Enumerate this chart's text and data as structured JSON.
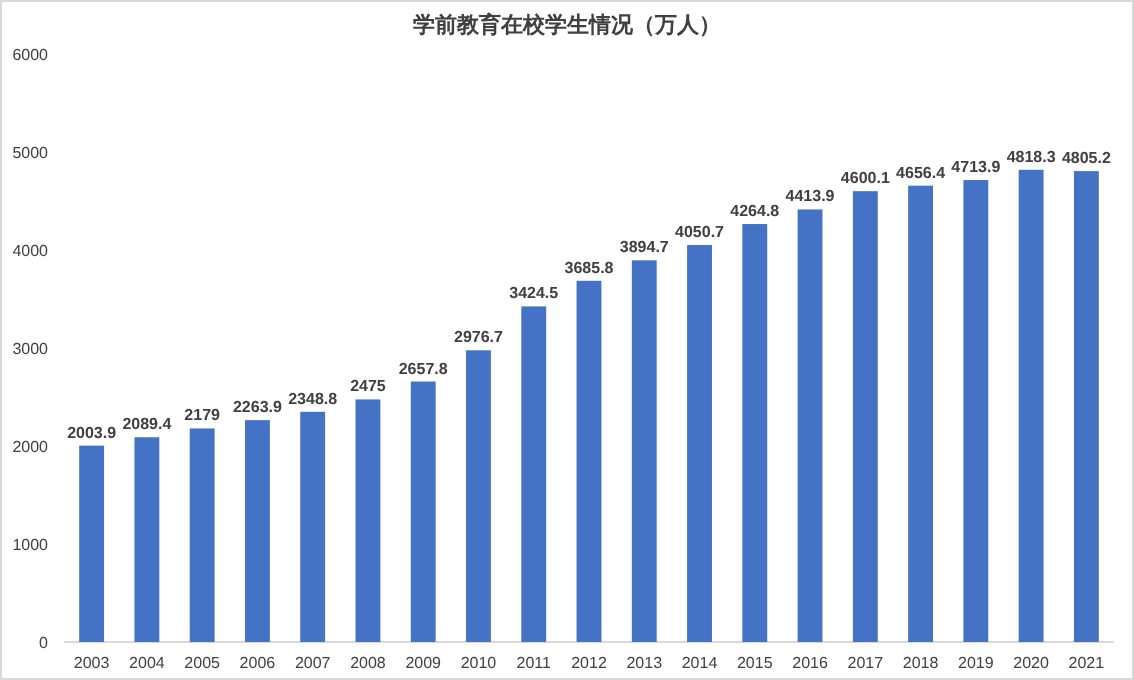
{
  "chart_data": {
    "type": "bar",
    "title": "学前教育在校学生情况（万人）",
    "categories": [
      "2003",
      "2004",
      "2005",
      "2006",
      "2007",
      "2008",
      "2009",
      "2010",
      "2011",
      "2012",
      "2013",
      "2014",
      "2015",
      "2016",
      "2017",
      "2018",
      "2019",
      "2020",
      "2021"
    ],
    "series": [
      {
        "color": "#4472c4",
        "values": [
          2003.9,
          2089.4,
          2179,
          2263.9,
          2348.8,
          2475,
          2657.8,
          2976.7,
          3424.5,
          3685.8,
          3894.7,
          4050.7,
          4264.8,
          4413.9,
          4600.1,
          4656.4,
          4713.9,
          4818.3,
          4805.2
        ]
      }
    ],
    "ylim": [
      0,
      6000
    ],
    "yticks": [
      0,
      1000,
      2000,
      3000,
      4000,
      5000,
      6000
    ],
    "grid": false,
    "data_labels": true
  }
}
